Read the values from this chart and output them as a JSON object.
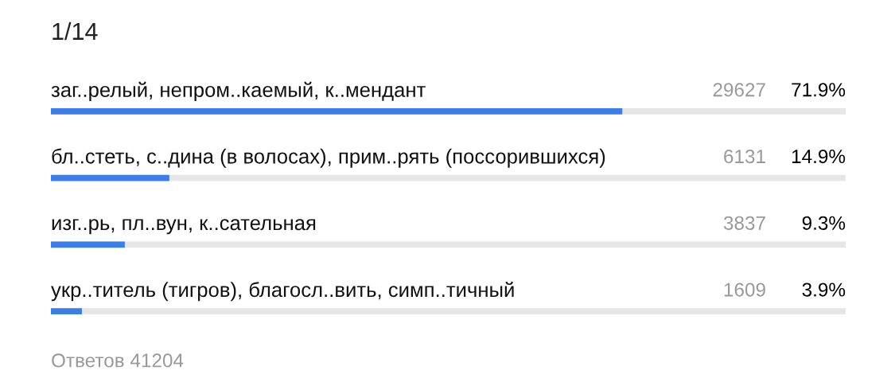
{
  "chart_data": {
    "type": "bar",
    "orientation": "horizontal",
    "title": "1/14",
    "categories": [
      "заг..релый, непром..каемый, к..мендант",
      "бл..стеть, с..дина (в волосах), прим..рять (поссорившихся)",
      "изг..рь, пл..вун, к..сательная",
      "укр..титель (тигров), благосл..вить, симп..тичный"
    ],
    "values": [
      71.9,
      14.9,
      9.3,
      3.9
    ],
    "color": "#3b7ee8",
    "xlim": [
      0,
      100
    ],
    "tick_labels": "y",
    "value_labels": [
      "71.9%",
      "14.9%",
      "9.3%",
      "3.9%"
    ],
    "annotations": [
      "29627",
      "6131",
      "3837",
      "1609",
      "Ответов 41204"
    ]
  }
}
